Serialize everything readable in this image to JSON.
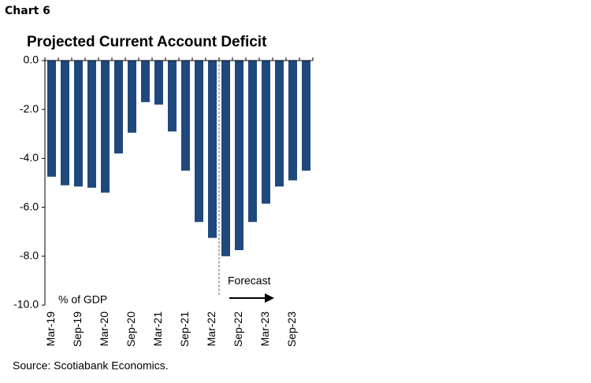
{
  "header": "Chart 6",
  "chart_data": {
    "type": "bar",
    "title": "Projected Current Account Deficit",
    "categories": [
      "Mar-19",
      null,
      "Sep-19",
      null,
      "Mar-20",
      null,
      "Sep-20",
      null,
      "Mar-21",
      null,
      "Sep-21",
      null,
      "Mar-22",
      null,
      "Sep-22",
      null,
      "Mar-23",
      null,
      "Sep-23",
      null
    ],
    "values": [
      -4.75,
      -5.1,
      -5.15,
      -5.2,
      -5.4,
      -3.8,
      -2.95,
      -1.7,
      -1.8,
      -2.9,
      -4.5,
      -6.6,
      -7.25,
      -8.0,
      -7.75,
      -6.6,
      -5.85,
      -5.15,
      -4.9,
      -4.5
    ],
    "color": "#1f497d",
    "ylim": [
      -10,
      0
    ],
    "yticks": [
      {
        "value": 0,
        "label": "0.0"
      },
      {
        "value": -2,
        "label": "-2.0"
      },
      {
        "value": -4,
        "label": "-4.0"
      },
      {
        "value": -6,
        "label": "-6.0"
      },
      {
        "value": -8,
        "label": "-8.0"
      },
      {
        "value": -10,
        "label": "-10.0"
      }
    ],
    "unit_label": "% of GDP",
    "annotation": "Forecast"
  },
  "source": "Source: Scotiabank Economics."
}
